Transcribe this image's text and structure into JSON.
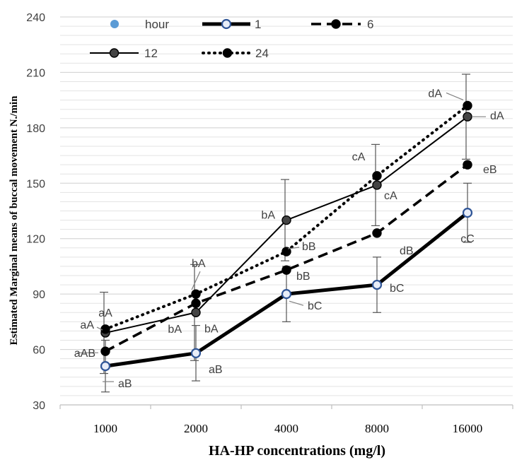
{
  "chart_data": {
    "type": "line",
    "title": "",
    "xlabel": "HA-HP concentrations (mg/l)",
    "ylabel": "Estimated Marginal means of buccal  movement  N./min",
    "categories": [
      "1000",
      "2000",
      "4000",
      "8000",
      "16000"
    ],
    "ylim": [
      30,
      240
    ],
    "yticks": [
      30,
      60,
      90,
      120,
      150,
      180,
      210,
      240
    ],
    "grid": true,
    "legend": {
      "placement": "top",
      "title": "hour",
      "title_color": "#5b9bd5"
    },
    "series": [
      {
        "name": "1",
        "values": [
          51,
          58,
          90,
          95,
          134
        ],
        "error": [
          14,
          15,
          15,
          15,
          16
        ],
        "style": "solid-thick",
        "color": "#000000",
        "marker_fill": "#e8edf8",
        "marker_stroke": "#2f5597",
        "labels": [
          "aB",
          "aB",
          "bC",
          "bC",
          "cC"
        ]
      },
      {
        "name": "6",
        "values": [
          59,
          85,
          103,
          123,
          160
        ],
        "error": [
          0,
          0,
          0,
          0,
          0
        ],
        "style": "dashed",
        "color": "#000000",
        "marker_fill": "#000000",
        "marker_stroke": "#000000",
        "labels": [
          "aAB",
          "bA",
          "bB",
          "dB",
          "eB"
        ]
      },
      {
        "name": "12",
        "values": [
          69,
          80,
          130,
          149,
          186
        ],
        "error": [
          22,
          26,
          22,
          22,
          23
        ],
        "style": "solid",
        "color": "#000000",
        "marker_fill": "#444444",
        "marker_stroke": "#000000",
        "labels": [
          "aA",
          "bA",
          "bA",
          "cA",
          "dA"
        ]
      },
      {
        "name": "24",
        "values": [
          71,
          90,
          113,
          154,
          192
        ],
        "error": [
          0,
          0,
          0,
          0,
          0
        ],
        "style": "dotted",
        "color": "#000000",
        "marker_fill": "#000000",
        "marker_stroke": "#000000",
        "labels": [
          "aA",
          "bA",
          "bB",
          "cA",
          "dA"
        ]
      }
    ]
  }
}
